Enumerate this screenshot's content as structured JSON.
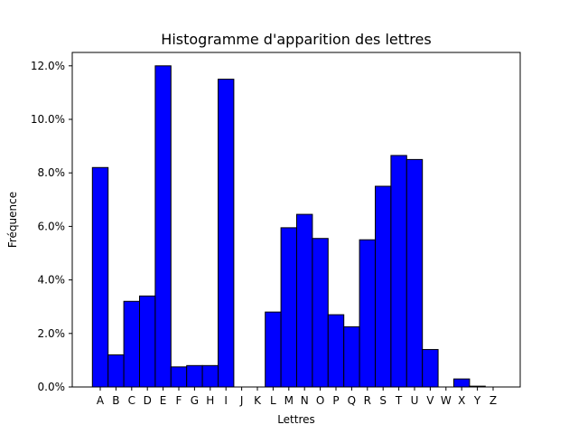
{
  "chart_data": {
    "type": "bar",
    "title": "Histogramme d'apparition des lettres",
    "xlabel": "Lettres",
    "ylabel": "Fréquence",
    "categories": [
      "A",
      "B",
      "C",
      "D",
      "E",
      "F",
      "G",
      "H",
      "I",
      "J",
      "K",
      "L",
      "M",
      "N",
      "O",
      "P",
      "Q",
      "R",
      "S",
      "T",
      "U",
      "V",
      "W",
      "X",
      "Y",
      "Z"
    ],
    "values": [
      8.2,
      1.2,
      3.2,
      3.4,
      12.0,
      0.75,
      0.8,
      0.8,
      11.5,
      0.0,
      0.0,
      2.8,
      5.95,
      6.45,
      5.55,
      2.7,
      2.25,
      5.5,
      7.5,
      8.65,
      8.5,
      1.4,
      0.0,
      0.3,
      0.03,
      0.0
    ],
    "ylim": [
      0,
      12.5
    ],
    "yticks": [
      0,
      2,
      4,
      6,
      8,
      10,
      12
    ],
    "ytick_labels": [
      "0.0%",
      "2.0%",
      "4.0%",
      "6.0%",
      "8.0%",
      "10.0%",
      "12.0%"
    ],
    "bar_color": "#0000ff",
    "edge_color": "#000000",
    "grid": false,
    "legend": false
  }
}
